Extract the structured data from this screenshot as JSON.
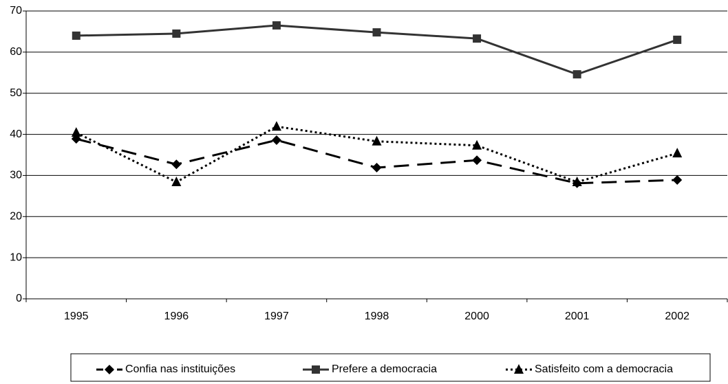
{
  "chart_data": {
    "type": "line",
    "categories": [
      "1995",
      "1996",
      "1997",
      "1998",
      "2000",
      "2001",
      "2002"
    ],
    "series": [
      {
        "name": "Confia nas instituições",
        "color": "#000000",
        "style": "dashed",
        "marker": "diamond",
        "values": [
          38.9,
          32.7,
          38.6,
          31.9,
          33.7,
          28.1,
          28.9
        ]
      },
      {
        "name": "Prefere a democracia",
        "color": "#333333",
        "style": "solid",
        "marker": "square",
        "values": [
          64.0,
          64.5,
          66.5,
          64.8,
          63.3,
          54.6,
          63.0
        ]
      },
      {
        "name": "Satisfeito com a democracia",
        "color": "#000000",
        "style": "dotted",
        "marker": "triangle",
        "values": [
          40.4,
          28.4,
          41.9,
          38.3,
          37.3,
          28.4,
          35.4
        ]
      }
    ],
    "ylim": [
      0,
      70
    ],
    "yticks": [
      0,
      10,
      20,
      30,
      40,
      50,
      60,
      70
    ],
    "grid": true,
    "legend": "bottom"
  }
}
